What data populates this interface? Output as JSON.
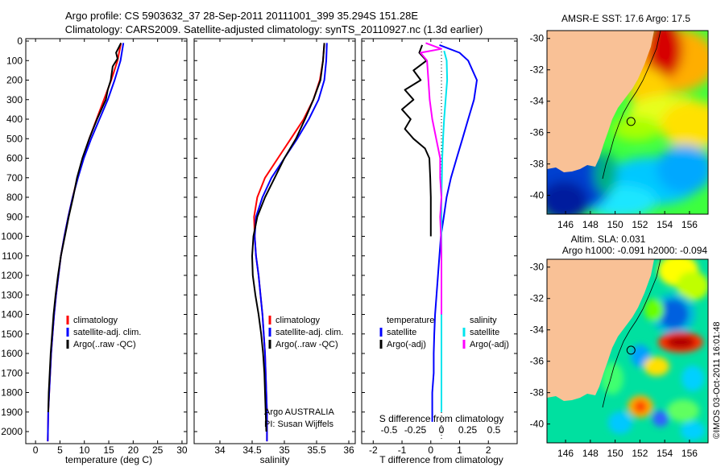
{
  "header": {
    "line1": "Argo profile: CS 5903632_37 28-Sep-2011 20111001_399 35.294S 151.28E",
    "line2": "Climatology: CARS2009. Satellite-adjusted climatology: synTS_20110927.nc (1.3d earlier)"
  },
  "side_label": "©IMOS 03-Oct-2011 16:01:48",
  "colors": {
    "climatology": "#ff0000",
    "satellite": "#0000ff",
    "argo": "#000000",
    "argo_adj_s": "#ff00ff",
    "sat_s": "#00e5ee",
    "land": "#f9c196"
  },
  "chart_data": [
    {
      "type": "line",
      "id": "temperature",
      "xlabel": "temperature (deg C)",
      "xlim": [
        -2,
        31
      ],
      "xticks": [
        "0",
        "5",
        "10",
        "15",
        "20",
        "25",
        "30"
      ],
      "ylim": [
        0,
        2050
      ],
      "yticks": [
        "0",
        "100",
        "200",
        "300",
        "400",
        "500",
        "600",
        "700",
        "800",
        "900",
        "1000",
        "1100",
        "1200",
        "1300",
        "1400",
        "1500",
        "1600",
        "1700",
        "1800",
        "1900",
        "2000"
      ],
      "legend": [
        "climatology",
        "satellite-adj. clim.",
        "Argo(..raw -QC)"
      ],
      "series": [
        {
          "name": "climatology",
          "color": "#ff0000",
          "x": [
            17.5,
            16.8,
            15.5,
            14,
            12.5,
            11,
            9.7,
            8.6,
            7.6,
            6.7,
            5.9,
            5.2,
            4.7,
            4.2,
            3.8,
            3.5,
            3.2,
            3.0,
            2.8,
            2.6,
            2.5
          ],
          "y": [
            10,
            100,
            200,
            300,
            400,
            500,
            600,
            700,
            800,
            900,
            1000,
            1100,
            1200,
            1300,
            1400,
            1500,
            1600,
            1700,
            1800,
            1900,
            2050
          ]
        },
        {
          "name": "satellite-adj. clim.",
          "color": "#0000ff",
          "x": [
            18,
            17.4,
            16.2,
            14.8,
            13.1,
            11.4,
            9.9,
            8.7,
            7.6,
            6.7,
            5.9,
            5.2,
            4.7,
            4.2,
            3.8,
            3.5,
            3.2,
            3.0,
            2.8,
            2.6,
            2.5
          ],
          "y": [
            10,
            100,
            200,
            300,
            400,
            500,
            600,
            700,
            800,
            900,
            1000,
            1100,
            1200,
            1300,
            1400,
            1500,
            1600,
            1700,
            1800,
            1900,
            2050
          ]
        },
        {
          "name": "Argo(..raw -QC)",
          "color": "#000000",
          "x": [
            17.5,
            16.5,
            16.8,
            15.8,
            15.4,
            14.8,
            14.4,
            13.5,
            12.6,
            11.8,
            11,
            10.3,
            9.6,
            8.5,
            7.7,
            6.8,
            6.0,
            5.2,
            4.6,
            4.1,
            3.7,
            3.4,
            3.1,
            2.9,
            2.7,
            2.6
          ],
          "y": [
            10,
            60,
            90,
            130,
            200,
            250,
            300,
            350,
            400,
            450,
            500,
            550,
            600,
            700,
            800,
            900,
            1000,
            1100,
            1200,
            1300,
            1400,
            1500,
            1600,
            1700,
            1800,
            1900
          ]
        }
      ]
    },
    {
      "type": "line",
      "id": "salinity",
      "xlabel": "salinity",
      "xlim": [
        33.6,
        36.1
      ],
      "xticks": [
        "34",
        "34.5",
        "35",
        "35.5",
        "36"
      ],
      "ylim": [
        0,
        2050
      ],
      "legend": [
        "climatology",
        "satellite-adj. clim.",
        "Argo(..raw -QC)"
      ],
      "annotation": [
        "Argo AUSTRALIA",
        "PI: Susan Wijffels"
      ],
      "series": [
        {
          "name": "climatology",
          "color": "#ff0000",
          "x": [
            35.62,
            35.6,
            35.55,
            35.45,
            35.3,
            35.1,
            34.9,
            34.7,
            34.58,
            34.53,
            34.54,
            34.56,
            34.6,
            34.63,
            34.66,
            34.68,
            34.7,
            34.71,
            34.72,
            34.73,
            34.73
          ],
          "y": [
            10,
            100,
            200,
            300,
            400,
            500,
            600,
            700,
            800,
            900,
            1000,
            1100,
            1200,
            1300,
            1400,
            1500,
            1600,
            1700,
            1800,
            1900,
            2050
          ]
        },
        {
          "name": "satellite-adj. clim.",
          "color": "#0000ff",
          "x": [
            35.66,
            35.65,
            35.62,
            35.53,
            35.38,
            35.2,
            35.0,
            34.8,
            34.66,
            34.56,
            34.54,
            34.56,
            34.6,
            34.63,
            34.66,
            34.68,
            34.7,
            34.71,
            34.72,
            34.73,
            34.73
          ],
          "y": [
            10,
            100,
            200,
            300,
            400,
            500,
            600,
            700,
            800,
            900,
            1000,
            1100,
            1200,
            1300,
            1400,
            1500,
            1600,
            1700,
            1800,
            1900,
            2050
          ]
        },
        {
          "name": "Argo(..raw -QC)",
          "color": "#000000",
          "x": [
            35.62,
            35.6,
            35.56,
            35.45,
            35.32,
            35.18,
            35.0,
            34.85,
            34.7,
            34.58,
            34.52,
            34.5,
            34.51,
            34.55,
            34.6,
            34.64,
            34.67,
            34.69,
            34.7,
            34.71,
            34.72
          ],
          "y": [
            10,
            100,
            200,
            300,
            400,
            500,
            600,
            700,
            800,
            900,
            1000,
            1100,
            1200,
            1300,
            1400,
            1500,
            1600,
            1700,
            1800,
            1900,
            2000
          ]
        }
      ]
    },
    {
      "type": "line",
      "id": "difference",
      "xlabel": "T difference from climatology",
      "xlabel_top": "S difference from climatology",
      "xlim": [
        -2.4,
        3.0
      ],
      "xticks": [
        "-2",
        "-1",
        "0",
        "1",
        "2"
      ],
      "sticks": [
        "-0.5",
        "-0.25",
        "0",
        "0.25",
        "0.5"
      ],
      "ylim": [
        0,
        2050
      ],
      "legend": [
        "temperature",
        "satellite",
        "Argo(-adj)",
        "salinity",
        "satellite",
        "Argo(-adj)"
      ],
      "series": [
        {
          "name": "satellite",
          "color": "#0000ff",
          "x": [
            0.3,
            1.0,
            1.3,
            1.6,
            1.5,
            1.3,
            1.1,
            0.9,
            0.7,
            0.55,
            0.45,
            0.35,
            0.3,
            0.25,
            0.2,
            0.15,
            0.12,
            0.1,
            0.1,
            0.05,
            0.05
          ],
          "y": [
            20,
            60,
            100,
            200,
            300,
            400,
            500,
            600,
            700,
            800,
            900,
            1000,
            1100,
            1200,
            1300,
            1400,
            1500,
            1600,
            1700,
            1800,
            1950
          ]
        },
        {
          "name": "Argo(-adj)",
          "color": "#000000",
          "x": [
            -0.3,
            -0.4,
            -0.15,
            -0.6,
            -0.35,
            -0.9,
            -0.6,
            -1.0,
            -0.7,
            -0.9,
            -0.6,
            -0.2,
            -0.05,
            -0.02,
            0.0,
            0.0,
            0.0
          ],
          "y": [
            20,
            60,
            100,
            150,
            200,
            250,
            300,
            350,
            400,
            450,
            500,
            550,
            600,
            700,
            800,
            900,
            1000
          ]
        },
        {
          "name": "satellite",
          "color": "#00e5ee",
          "x": [
            0.1,
            0.2,
            0.22,
            0.16,
            0.1,
            0.06,
            0.03,
            0.02,
            0.0,
            0.0,
            0.0
          ],
          "y": [
            50,
            100,
            200,
            300,
            400,
            500,
            600,
            700,
            800,
            1000,
            1900
          ]
        },
        {
          "name": "Argo(-adj)",
          "color": "#ff00ff",
          "x": [
            -0.6,
            0.0,
            -0.8,
            -0.55,
            -0.5,
            -0.45,
            -0.35,
            -0.2,
            -0.05,
            -0.05,
            0.0,
            -0.05,
            -0.02,
            0.0,
            0.0
          ],
          "y": [
            10,
            40,
            60,
            100,
            200,
            300,
            400,
            500,
            600,
            700,
            800,
            900,
            1000,
            1100,
            1400
          ]
        }
      ]
    },
    {
      "type": "heatmap",
      "id": "sst_map",
      "title": "AMSR-E SST: 17.6 Argo: 17.5",
      "xticks": [
        "146",
        "148",
        "150",
        "152",
        "154",
        "156"
      ],
      "yticks": [
        "-30",
        "-32",
        "-34",
        "-36",
        "-38",
        "-40"
      ],
      "xlim": [
        144.5,
        157.5
      ],
      "ylim": [
        -41.2,
        -29.5
      ],
      "float_lon": 151.28,
      "float_lat": -35.294
    },
    {
      "type": "heatmap",
      "id": "sla_map",
      "title": "Altim. SLA: 0.031",
      "subtitle": "Argo h1000: -0.091 h2000: -0.094",
      "xticks": [
        "146",
        "148",
        "150",
        "152",
        "154",
        "156"
      ],
      "yticks": [
        "-30",
        "-32",
        "-34",
        "-36",
        "-38",
        "-40"
      ],
      "xlim": [
        144.5,
        157.5
      ],
      "ylim": [
        -41.2,
        -29.5
      ],
      "float_lon": 151.28,
      "float_lat": -35.294
    }
  ]
}
